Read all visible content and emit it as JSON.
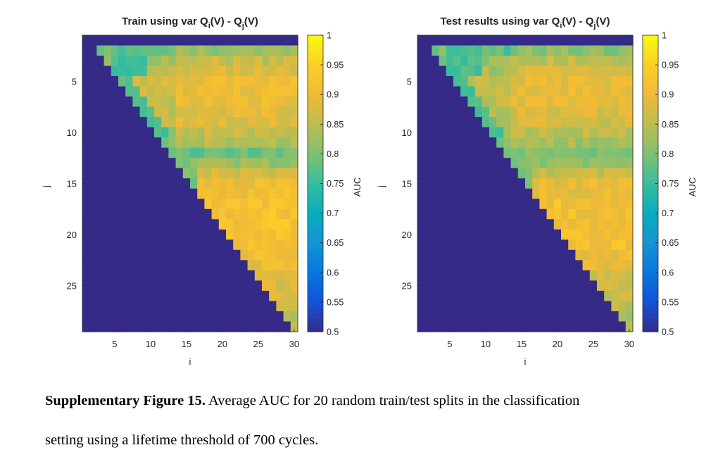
{
  "chart_data": [
    {
      "type": "heatmap",
      "title": "Train using var Q_i(V) - Q_j(V)",
      "title_parts": {
        "main": "Train using var Q",
        "sub_i": "i",
        "middle": "(V) - Q",
        "sub_j": "j",
        "end": "(V)"
      },
      "xlabel": "i",
      "ylabel": "j",
      "xlim": [
        0.5,
        30.5
      ],
      "ylim": [
        0.5,
        29.5
      ],
      "x_ticks": [
        "5",
        "10",
        "15",
        "20",
        "25",
        "30"
      ],
      "y_ticks": [
        "5",
        "10",
        "15",
        "20",
        "25"
      ],
      "colorbar_label": "AUC",
      "clim": [
        0.5,
        1
      ],
      "colorbar_ticks": [
        "0.5",
        "0.55",
        "0.6",
        "0.65",
        "0.7",
        "0.75",
        "0.8",
        "0.85",
        "0.9",
        "0.95",
        "1"
      ],
      "colormap": "parula",
      "grid": false,
      "note_cells": "cells with j >= i are 0.5 (lower-left triangle); upper triangle values approx. 0.8-0.95, with a low band (~0.78-0.8) around j = 12 and a blue region near the diagonal for small i",
      "row_profile": {
        "j": [
          1,
          2,
          3,
          4,
          5,
          6,
          7,
          8,
          9,
          10,
          11,
          12,
          13,
          14,
          15,
          16,
          17,
          18,
          19,
          20,
          21,
          22,
          23,
          24,
          25,
          26,
          27,
          28,
          29
        ],
        "base_auc": [
          0.5,
          0.82,
          0.86,
          0.88,
          0.9,
          0.9,
          0.9,
          0.89,
          0.88,
          0.86,
          0.84,
          0.79,
          0.82,
          0.87,
          0.9,
          0.91,
          0.92,
          0.92,
          0.92,
          0.92,
          0.92,
          0.91,
          0.9,
          0.89,
          0.88,
          0.87,
          0.86,
          0.85,
          0.84
        ]
      }
    },
    {
      "type": "heatmap",
      "title": "Test results using var Q_i(V) - Q_j(V)",
      "title_parts": {
        "main": "Test results using var Q",
        "sub_i": "i",
        "middle": "(V) - Q",
        "sub_j": "j",
        "end": "(V)"
      },
      "xlabel": "i",
      "ylabel": "j",
      "xlim": [
        0.5,
        30.5
      ],
      "ylim": [
        0.5,
        29.5
      ],
      "x_ticks": [
        "5",
        "10",
        "15",
        "20",
        "25",
        "30"
      ],
      "y_ticks": [
        "5",
        "10",
        "15",
        "20",
        "25"
      ],
      "colorbar_label": "AUC",
      "clim": [
        0.5,
        1
      ],
      "colorbar_ticks": [
        "0.5",
        "0.55",
        "0.6",
        "0.65",
        "0.7",
        "0.75",
        "0.8",
        "0.85",
        "0.9",
        "0.95",
        "1"
      ],
      "colormap": "parula",
      "grid": false,
      "note_cells": "cells with j >= i are 0.5 (lower-left triangle); upper triangle values approx. 0.8-0.93, with a low band (~0.8) around j = 12 and a blue region near the diagonal for small i",
      "row_profile": {
        "j": [
          1,
          2,
          3,
          4,
          5,
          6,
          7,
          8,
          9,
          10,
          11,
          12,
          13,
          14,
          15,
          16,
          17,
          18,
          19,
          20,
          21,
          22,
          23,
          24,
          25,
          26,
          27,
          28,
          29
        ],
        "base_auc": [
          0.5,
          0.81,
          0.85,
          0.87,
          0.89,
          0.89,
          0.89,
          0.88,
          0.87,
          0.85,
          0.83,
          0.8,
          0.82,
          0.86,
          0.89,
          0.9,
          0.91,
          0.91,
          0.91,
          0.91,
          0.91,
          0.9,
          0.89,
          0.88,
          0.87,
          0.86,
          0.85,
          0.84,
          0.83
        ]
      }
    }
  ],
  "caption": {
    "label": "Supplementary Figure 15.",
    "text": "Average AUC for 20 random train/test splits in the classification",
    "text2": "setting using a lifetime threshold of 700 cycles."
  }
}
